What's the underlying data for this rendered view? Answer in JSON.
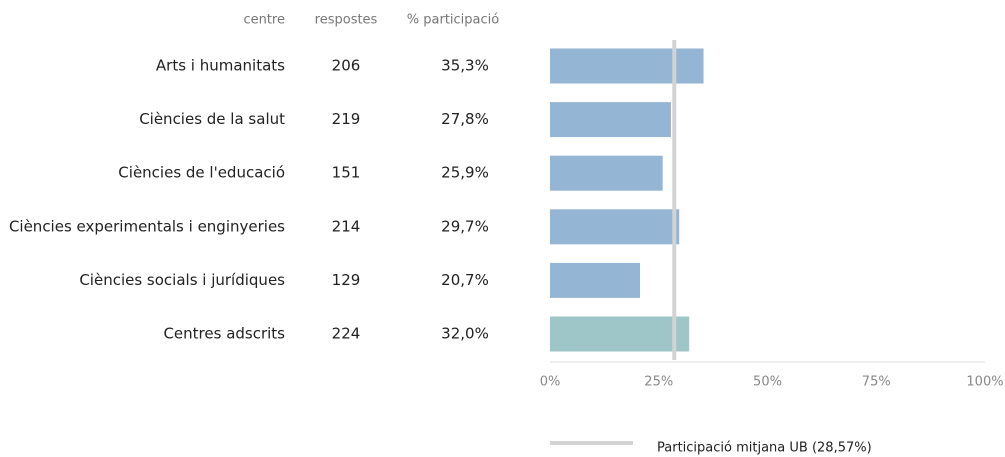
{
  "chart_data": {
    "type": "hbar",
    "columns": [
      "centre",
      "respostes",
      "% participació"
    ],
    "categories": [
      "Arts i humanitats",
      "Ciències de la salut",
      "Ciències de l'educació",
      "Ciències experimentals i enginyeries",
      "Ciències socials i jurídiques",
      "Centres adscrits"
    ],
    "respostes": [
      206,
      219,
      151,
      214,
      129,
      224
    ],
    "values": [
      35.3,
      27.8,
      25.9,
      29.7,
      20.7,
      32.0
    ],
    "value_labels": [
      "35,3%",
      "27,8%",
      "25,9%",
      "29,7%",
      "20,7%",
      "32,0%"
    ],
    "colors": [
      "#95b5d4",
      "#95b5d4",
      "#95b5d4",
      "#95b5d4",
      "#95b5d4",
      "#9ec5c8"
    ],
    "xlim": [
      0,
      100
    ],
    "xticks": [
      {
        "value": 0,
        "label": "0%"
      },
      {
        "value": 25,
        "label": "25%"
      },
      {
        "value": 50,
        "label": "50%"
      },
      {
        "value": 75,
        "label": "75%"
      },
      {
        "value": 100,
        "label": "100%"
      }
    ],
    "reference_line": {
      "value": 28.57,
      "label": "Participació mitjana UB (28,57%)",
      "color": "#d3d3d3"
    }
  }
}
